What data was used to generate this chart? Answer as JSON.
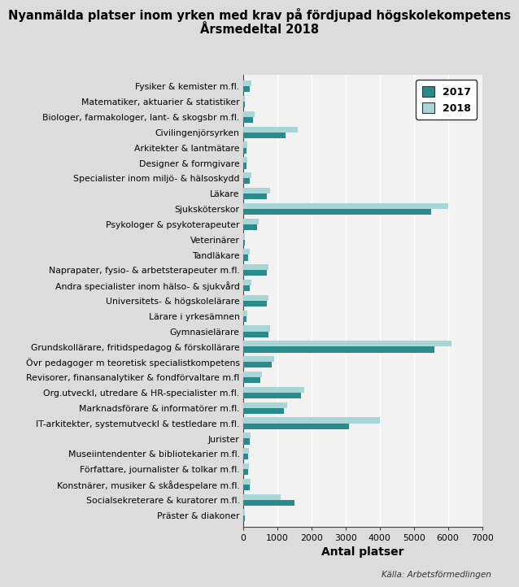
{
  "title": "Nyanmälda platser inom yrken med krav på fördjupad högskolekompetens\nÅrsmedeltal 2018",
  "xlabel": "Antal platser",
  "source": "Källa: Arbetsförmedlingen",
  "categories": [
    "Fysiker & kemister m.fl.",
    "Matematiker, aktuarier & statistiker",
    "Biologer, farmakologer, lant- & skogsbr m.fl.",
    "Civilingenjörsyrken",
    "Arkitekter & lantmätare",
    "Designer & formgivare",
    "Specialister inom miljö- & hälsoskydd",
    "Läkare",
    "Sjuksköterskor",
    "Psykologer & psykoterapeuter",
    "Veterinärer",
    "Tandläkare",
    "Naprapater, fysio- & arbetsterapeuter m.fl.",
    "Andra specialister inom hälso- & sjukvård",
    "Universitets- & högskolelärare",
    "Lärare i yrkesämnen",
    "Gymnasielärare",
    "Grundskollärare, fritidspedagog & förskollärare",
    "Övr pedagoger m teoretisk specialistkompetens",
    "Revisorer, finansanalytiker & fondförvaltare m.fl",
    "Org.utveckl, utredare & HR-specialister m.fl.",
    "Marknadsförare & informatörer m.fl.",
    "IT-arkitekter, systemutveckl & testledare m.fl.",
    "Jurister",
    "Museiintendenter & bibliotekarier m.fl.",
    "Författare, journalister & tolkar m.fl.",
    "Konstnärer, musiker & skådespelare m.fl.",
    "Socialsekreterare & kuratorer m.fl.",
    "Präster & diakoner"
  ],
  "values_2017": [
    200,
    50,
    300,
    1250,
    100,
    100,
    200,
    700,
    5500,
    400,
    50,
    150,
    700,
    200,
    700,
    100,
    750,
    5600,
    850,
    500,
    1700,
    1200,
    3100,
    200,
    150,
    150,
    200,
    1500,
    50
  ],
  "values_2018": [
    250,
    60,
    350,
    1600,
    120,
    120,
    250,
    800,
    6000,
    450,
    60,
    200,
    750,
    250,
    750,
    120,
    800,
    6100,
    900,
    550,
    1800,
    1300,
    4000,
    220,
    170,
    170,
    220,
    1100,
    60
  ],
  "color_2017": "#2a8a8c",
  "color_2018": "#a8d5d6",
  "xlim": [
    0,
    7000
  ],
  "xticks": [
    0,
    1000,
    2000,
    3000,
    4000,
    5000,
    6000,
    7000
  ],
  "background_color": "#dcdcdc",
  "plot_background": "#f2f2f2",
  "legend_labels": [
    "2017",
    "2018"
  ],
  "bar_height": 0.38,
  "title_fontsize": 10.5,
  "axis_label_fontsize": 10,
  "tick_fontsize": 7.8,
  "legend_fontsize": 9
}
